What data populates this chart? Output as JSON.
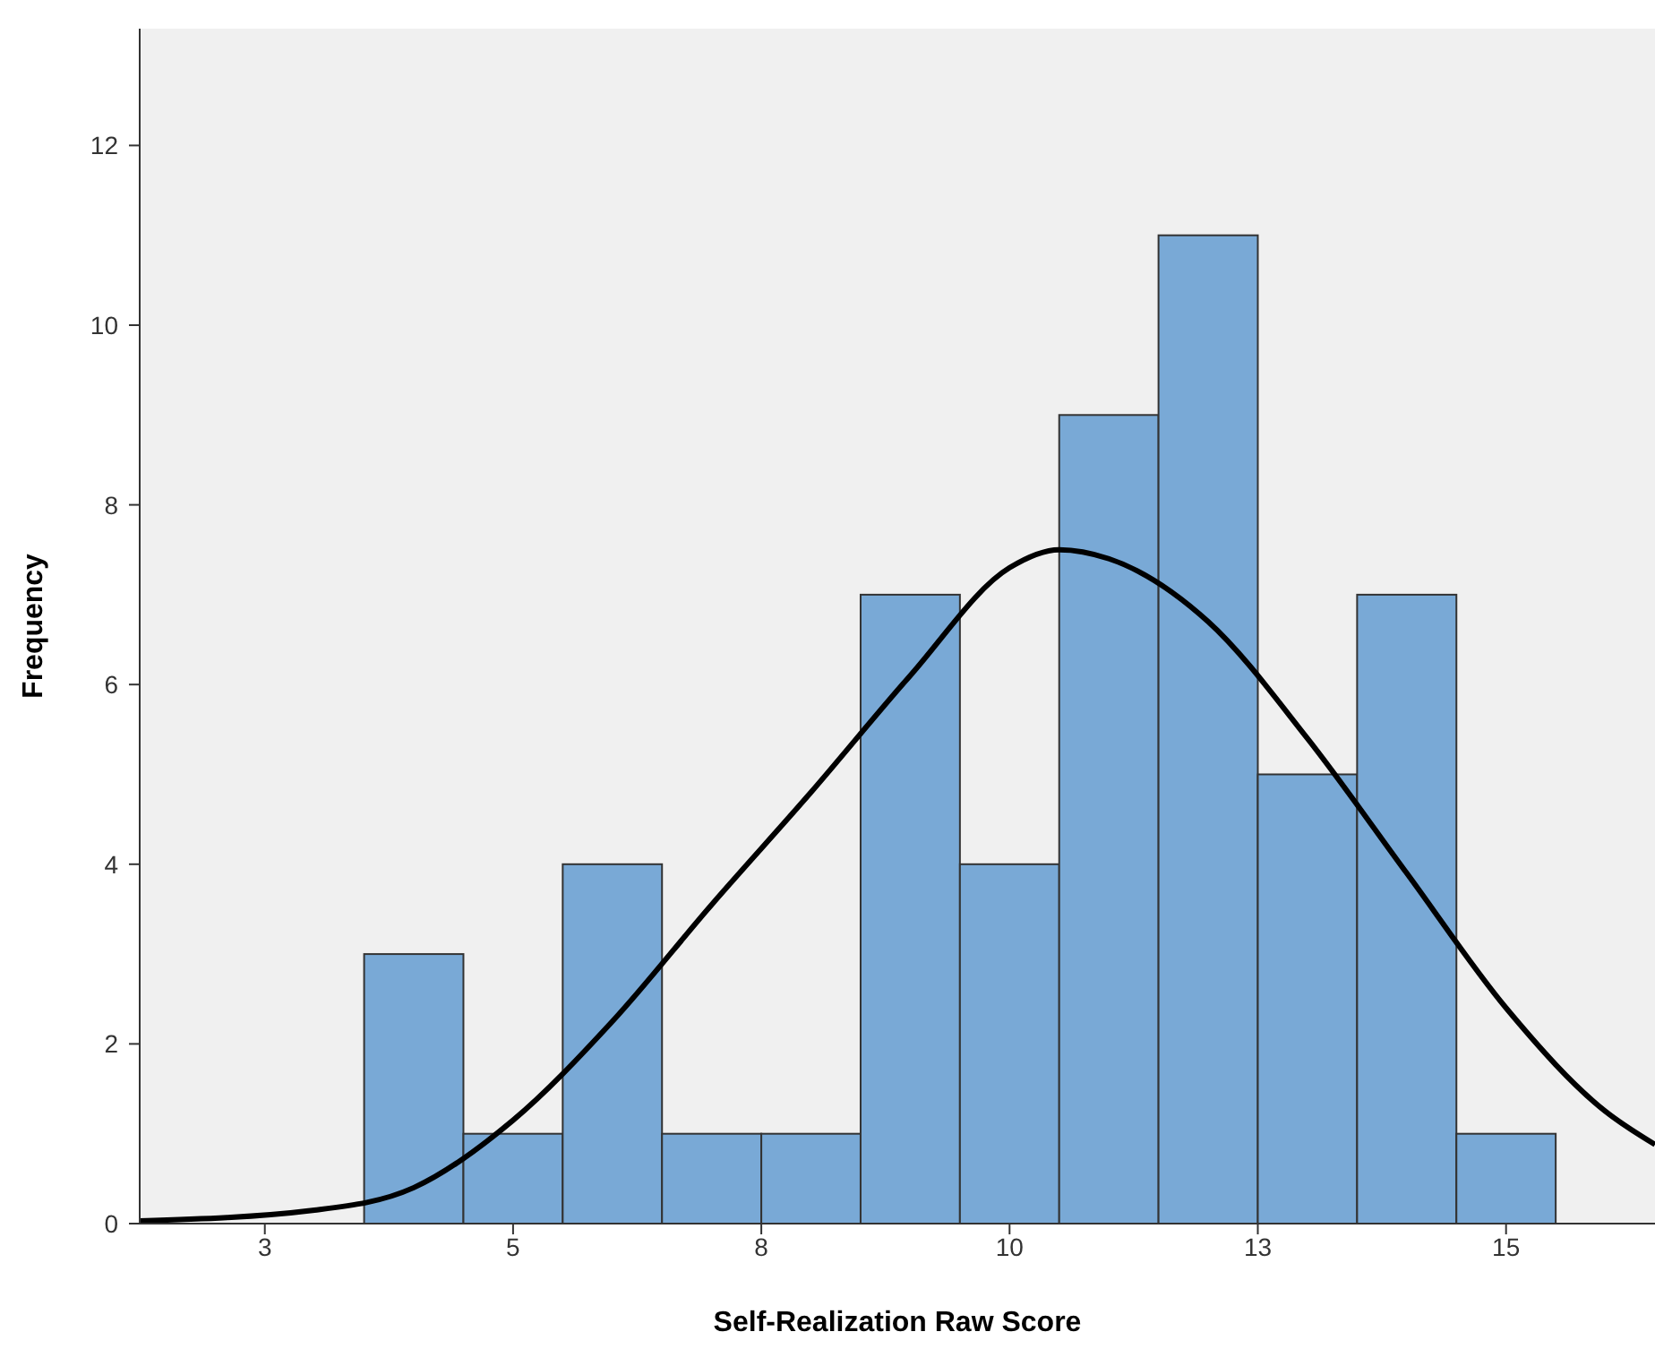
{
  "chart_data": {
    "type": "histogram",
    "xlabel": "Self-Realization Raw Score",
    "ylabel": "Frequency",
    "bins": [
      3.5,
      4.5,
      5.5,
      6.5,
      7.5,
      8.5,
      9.5,
      10.5,
      11.5,
      12.5,
      13.5,
      14.5,
      15.5
    ],
    "values": [
      3,
      1,
      4,
      1,
      1,
      7,
      4,
      9,
      11,
      5,
      7,
      1
    ],
    "color": "#79a9d6",
    "series": [
      {
        "type": "line",
        "color": "#000000",
        "x": [
          1.24,
          3,
          4,
          5,
          6,
          7,
          8,
          9,
          10,
          10.5,
          11,
          12,
          13,
          14,
          15,
          16,
          16.5
        ],
        "values": [
          0.03,
          0.15,
          0.4,
          1.15,
          2.25,
          3.55,
          4.8,
          6.1,
          7.3,
          7.5,
          7.4,
          6.7,
          5.4,
          3.9,
          2.4,
          1.25,
          0.88
        ]
      }
    ],
    "xlim": [
      1.24,
      16.5
    ],
    "xticks": [
      {
        "value": 2.5,
        "label": "3"
      },
      {
        "value": 5,
        "label": "5"
      },
      {
        "value": 7.5,
        "label": "8"
      },
      {
        "value": 10,
        "label": "10"
      },
      {
        "value": 12.5,
        "label": "13"
      },
      {
        "value": 15,
        "label": "15"
      }
    ],
    "ylim": [
      0,
      13.3
    ],
    "yticks": [
      0,
      2,
      4,
      6,
      8,
      10,
      12
    ],
    "grid": false,
    "legend": false,
    "marker": "none",
    "line_style": "solid"
  }
}
